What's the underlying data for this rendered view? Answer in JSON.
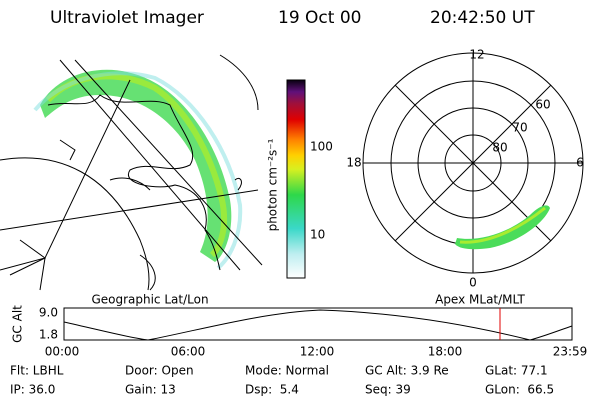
{
  "header": {
    "title": "Ultraviolet Imager",
    "date": "19 Oct 00",
    "time": "20:42:50 UT"
  },
  "colorbar": {
    "label": "photon cm⁻²s⁻¹",
    "ticks": [
      "100",
      "10"
    ]
  },
  "polar": {
    "labels": [
      "12",
      "18",
      "6",
      "0",
      "60",
      "70",
      "80"
    ]
  },
  "panels": {
    "left": "Geographic Lat/Lon",
    "right": "Apex MLat/MLT"
  },
  "timeline": {
    "axis_label": "GC Alt",
    "yticks": [
      "9.0",
      "1.8"
    ],
    "xticks": [
      "00:00",
      "06:00",
      "12:00",
      "18:00",
      "23:59"
    ]
  },
  "info": {
    "rows": [
      [
        "Flt: LBHL",
        "Door: Open",
        "Mode: Normal",
        "GC Alt: 3.9 Re",
        "GLat: 77.1"
      ],
      [
        "IP: 36.0",
        "Gain: 13",
        "Dsp:  5.4",
        "Seq: 39",
        "GLon:  66.5"
      ]
    ]
  }
}
